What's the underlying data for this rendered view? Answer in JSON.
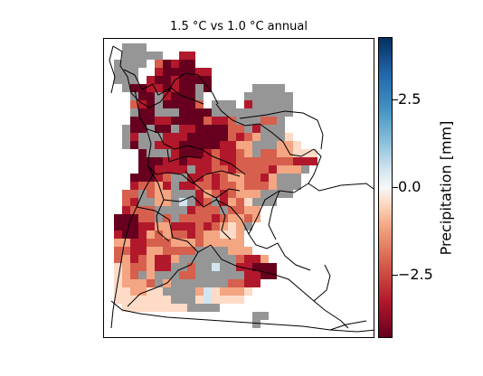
{
  "figure": {
    "title": "1.5 °C vs 1.0 °C annual",
    "colorbar": {
      "label": "Precipitation [mm]",
      "range": [
        -4.2,
        4.2
      ],
      "ticks": [
        {
          "value": 2.5,
          "label": "2.5"
        },
        {
          "value": 0.0,
          "label": "0.0"
        },
        {
          "value": -2.5,
          "label": "−2.5"
        }
      ],
      "colormap": "RdBu",
      "missing_color": "#969696"
    }
  }
}
